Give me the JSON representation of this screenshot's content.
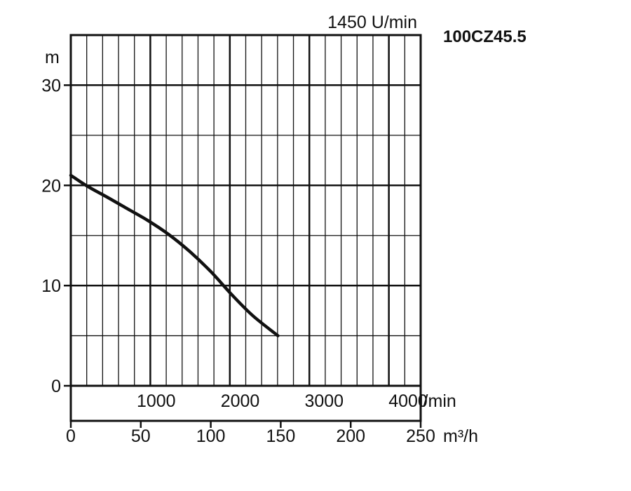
{
  "chart_data": {
    "type": "line",
    "title": "100CZ45.5",
    "speed_label": "1450 U/min",
    "ylabel": "m",
    "xlabel": "m³/h",
    "x2label": "l/min",
    "ylim": [
      0,
      35
    ],
    "xlim": [
      0,
      250
    ],
    "yticks": [
      0,
      10,
      20,
      30
    ],
    "xticks": [
      0,
      50,
      100,
      150,
      200,
      250
    ],
    "x2ticks": [
      1000,
      2000,
      3000,
      4000
    ],
    "grid": true,
    "series": [
      {
        "x": [
          0,
          12,
          25,
          40,
          55,
          70,
          85,
          100,
          115,
          130,
          148
        ],
        "y": [
          21,
          19.9,
          18.9,
          17.7,
          16.5,
          15.1,
          13.4,
          11.4,
          9.1,
          7.0,
          5.0
        ]
      }
    ]
  }
}
